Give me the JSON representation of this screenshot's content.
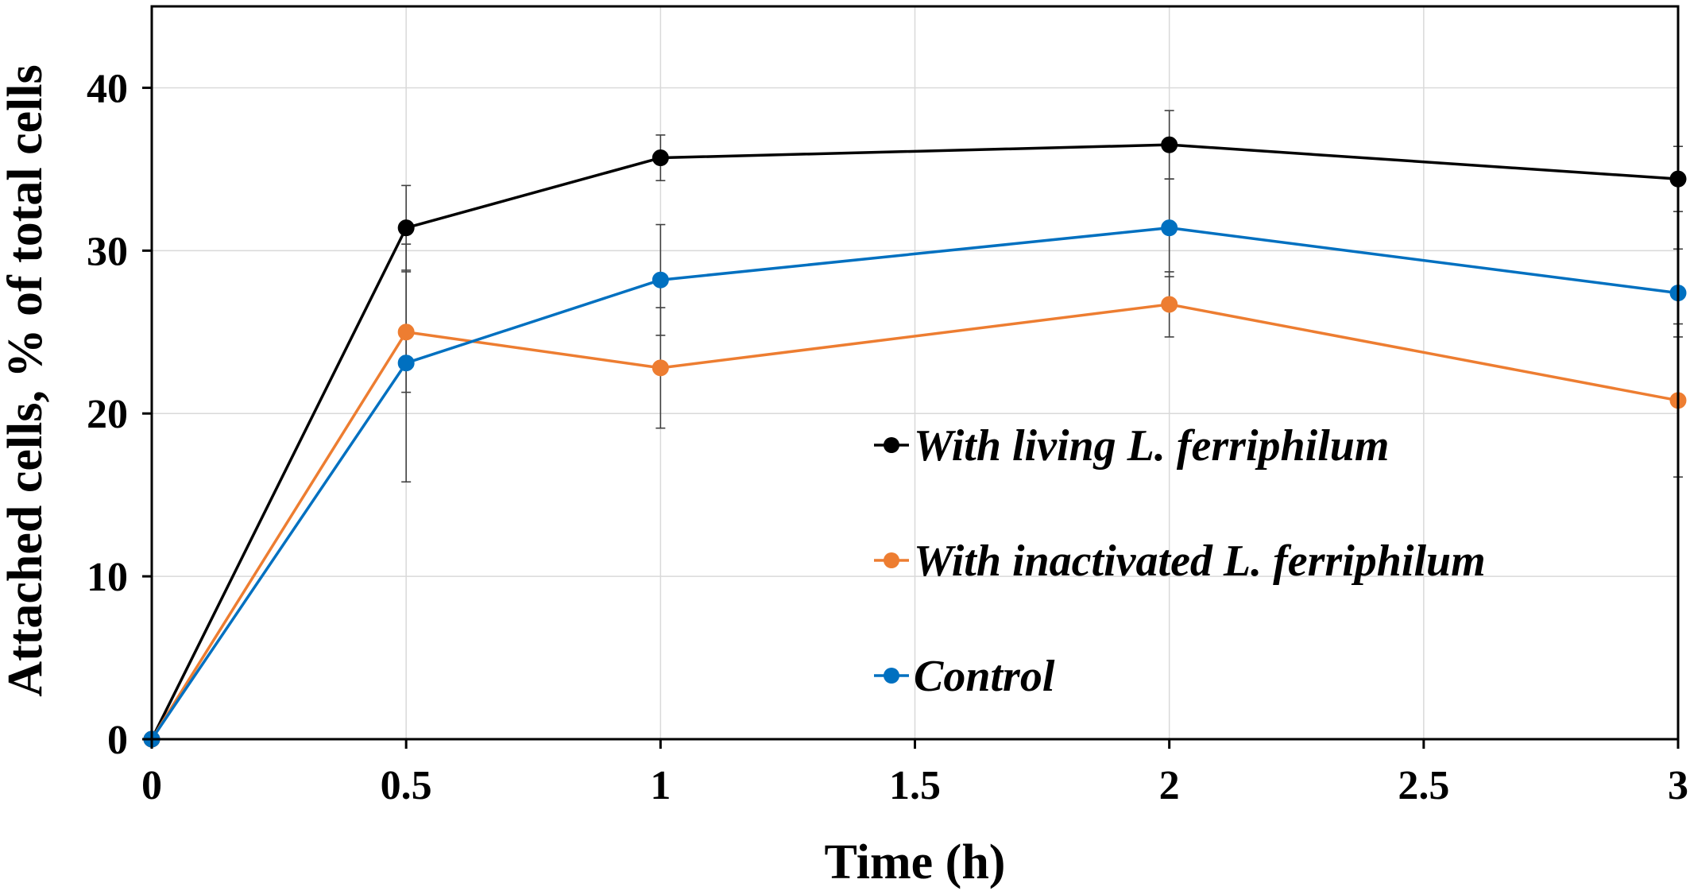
{
  "chart_data": {
    "type": "line",
    "title": "",
    "xlabel": "Time (h)",
    "ylabel": "Attached cells, % of total cells",
    "xlim": [
      0,
      3
    ],
    "ylim": [
      0,
      45
    ],
    "x_ticks": [
      0,
      0.5,
      1,
      1.5,
      2,
      2.5,
      3
    ],
    "x_tick_labels": [
      "0",
      "0.5",
      "1",
      "1.5",
      "2",
      "2.5",
      "3"
    ],
    "y_ticks": [
      0,
      10,
      20,
      30,
      40
    ],
    "y_tick_labels": [
      "0",
      "10",
      "20",
      "30",
      "40"
    ],
    "grid": true,
    "legend_position": "center-right",
    "x": [
      0,
      0.5,
      1,
      2,
      3
    ],
    "series": [
      {
        "name": "With living L. ferriphilum",
        "color": "#000000",
        "values": [
          0,
          31.4,
          35.7,
          36.5,
          34.4
        ],
        "errors": [
          0,
          2.6,
          1.4,
          2.1,
          2.0
        ]
      },
      {
        "name": "With inactivated L. ferriphilum",
        "color": "#ED7D31",
        "values": [
          0,
          25.0,
          22.8,
          26.7,
          20.8
        ],
        "errors": [
          0,
          3.7,
          3.7,
          2.0,
          4.7
        ]
      },
      {
        "name": "Control",
        "color": "#0070C0",
        "values": [
          0,
          23.1,
          28.2,
          31.4,
          27.4
        ],
        "errors": [
          0,
          7.3,
          3.4,
          3.0,
          2.7
        ]
      }
    ]
  }
}
